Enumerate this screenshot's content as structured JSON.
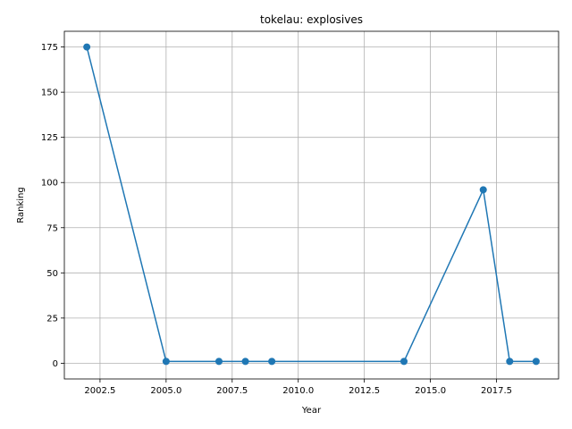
{
  "chart_data": {
    "type": "line",
    "title": "tokelau: explosives",
    "xlabel": "Year",
    "ylabel": "Ranking",
    "xlim": [
      2001.15,
      2019.85
    ],
    "ylim": [
      -8.7,
      183.7
    ],
    "xticks": [
      2002.5,
      2005.0,
      2007.5,
      2010.0,
      2012.5,
      2015.0,
      2017.5
    ],
    "xtick_labels": [
      "2002.5",
      "2005.0",
      "2007.5",
      "2010.0",
      "2012.5",
      "2015.0",
      "2017.5"
    ],
    "yticks": [
      0,
      25,
      50,
      75,
      100,
      125,
      150,
      175
    ],
    "ytick_labels": [
      "0",
      "25",
      "50",
      "75",
      "100",
      "125",
      "150",
      "175"
    ],
    "grid": true,
    "series": [
      {
        "color": "#1f77b4",
        "marker": "circle",
        "x": [
          2002,
          2005,
          2007,
          2008,
          2009,
          2014,
          2017,
          2018,
          2019
        ],
        "y": [
          175,
          1,
          1,
          1,
          1,
          1,
          96,
          1,
          1
        ]
      }
    ]
  }
}
